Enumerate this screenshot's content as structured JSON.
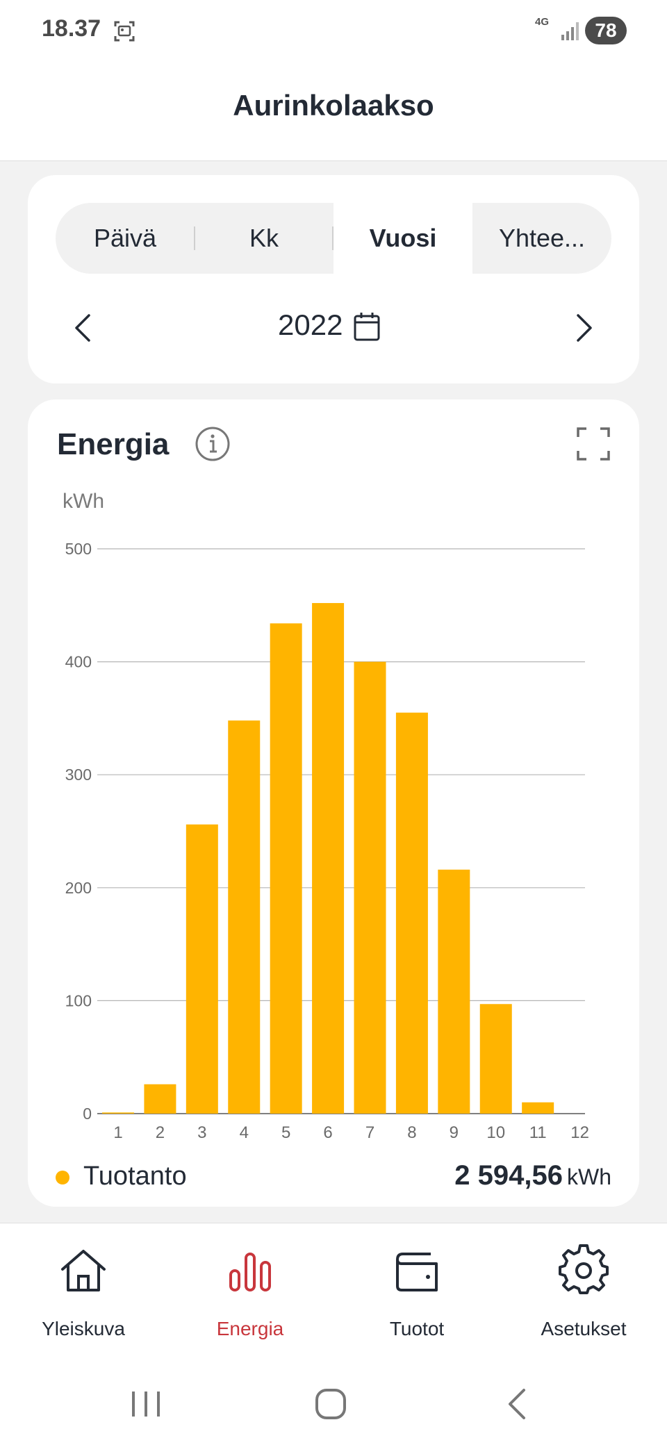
{
  "status_bar": {
    "time": "18.37",
    "network": "4G",
    "battery": "78"
  },
  "header": {
    "title": "Aurinkolaakso"
  },
  "period": {
    "tabs": [
      {
        "label": "Päivä",
        "active": false
      },
      {
        "label": "Kk",
        "active": false
      },
      {
        "label": "Vuosi",
        "active": true
      },
      {
        "label": "Yhtee...",
        "active": false
      }
    ],
    "year": "2022"
  },
  "energy": {
    "title": "Energia",
    "unit": "kWh",
    "legend_label": "Tuotanto",
    "total_value": "2 594,56",
    "total_unit": "kWh",
    "accent": "#ffb400"
  },
  "chart_data": {
    "type": "bar",
    "categories": [
      "1",
      "2",
      "3",
      "4",
      "5",
      "6",
      "7",
      "8",
      "9",
      "10",
      "11",
      "12"
    ],
    "series": [
      {
        "name": "Tuotanto",
        "values": [
          1,
          26,
          256,
          348,
          434,
          452,
          400,
          355,
          216,
          97,
          10,
          0
        ]
      }
    ],
    "ylabel": "kWh",
    "yticks": [
      0,
      100,
      200,
      300,
      400,
      500
    ],
    "ylim": [
      0,
      500
    ],
    "grid": true,
    "color": "#ffb400"
  },
  "bottom_nav": {
    "items": [
      {
        "label": "Yleiskuva",
        "icon": "home-icon",
        "active": false
      },
      {
        "label": "Energia",
        "icon": "bar-chart-icon",
        "active": true
      },
      {
        "label": "Tuotot",
        "icon": "wallet-icon",
        "active": false
      },
      {
        "label": "Asetukset",
        "icon": "gear-icon",
        "active": false
      }
    ],
    "active_color": "#c8363c"
  }
}
